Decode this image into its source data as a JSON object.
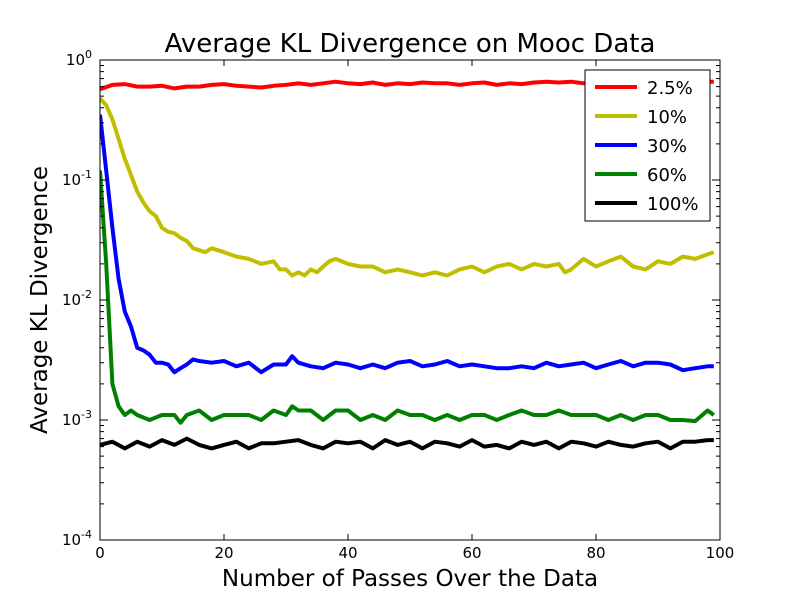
{
  "chart_data": {
    "type": "line",
    "title": "Average KL Divergence on Mooc Data",
    "xlabel": "Number of Passes Over the Data",
    "ylabel": "Average KL Divergence",
    "xlim": [
      0,
      100
    ],
    "ylim": [
      0.0001,
      1
    ],
    "yscale": "log",
    "grid": false,
    "legend_position": "top-right",
    "x_ticks": [
      {
        "value": 0,
        "label": "0"
      },
      {
        "value": 20,
        "label": "20"
      },
      {
        "value": 40,
        "label": "40"
      },
      {
        "value": 60,
        "label": "60"
      },
      {
        "value": 80,
        "label": "80"
      },
      {
        "value": 100,
        "label": "100"
      }
    ],
    "y_ticks": [
      {
        "value": 1,
        "base": "10",
        "exp": "0"
      },
      {
        "value": 0.1,
        "base": "10",
        "exp": "-1"
      },
      {
        "value": 0.01,
        "base": "10",
        "exp": "-2"
      },
      {
        "value": 0.001,
        "base": "10",
        "exp": "-3"
      },
      {
        "value": 0.0001,
        "base": "10",
        "exp": "-4"
      }
    ],
    "series": [
      {
        "name": "2.5%",
        "color": "#ff0000",
        "points": [
          [
            0,
            0.57
          ],
          [
            2,
            0.62
          ],
          [
            4,
            0.63
          ],
          [
            6,
            0.6
          ],
          [
            8,
            0.6
          ],
          [
            10,
            0.61
          ],
          [
            12,
            0.58
          ],
          [
            14,
            0.6
          ],
          [
            16,
            0.6
          ],
          [
            18,
            0.62
          ],
          [
            20,
            0.63
          ],
          [
            22,
            0.61
          ],
          [
            24,
            0.6
          ],
          [
            26,
            0.59
          ],
          [
            28,
            0.61
          ],
          [
            30,
            0.62
          ],
          [
            32,
            0.64
          ],
          [
            34,
            0.62
          ],
          [
            36,
            0.64
          ],
          [
            38,
            0.66
          ],
          [
            40,
            0.64
          ],
          [
            42,
            0.63
          ],
          [
            44,
            0.65
          ],
          [
            46,
            0.62
          ],
          [
            48,
            0.64
          ],
          [
            50,
            0.63
          ],
          [
            52,
            0.65
          ],
          [
            54,
            0.64
          ],
          [
            56,
            0.64
          ],
          [
            58,
            0.62
          ],
          [
            60,
            0.64
          ],
          [
            62,
            0.65
          ],
          [
            64,
            0.62
          ],
          [
            66,
            0.64
          ],
          [
            68,
            0.63
          ],
          [
            70,
            0.65
          ],
          [
            72,
            0.66
          ],
          [
            74,
            0.65
          ],
          [
            76,
            0.66
          ],
          [
            78,
            0.64
          ],
          [
            80,
            0.65
          ],
          [
            82,
            0.66
          ],
          [
            84,
            0.64
          ],
          [
            86,
            0.65
          ],
          [
            88,
            0.66
          ],
          [
            90,
            0.65
          ],
          [
            92,
            0.65
          ],
          [
            94,
            0.66
          ],
          [
            96,
            0.66
          ],
          [
            98,
            0.66
          ],
          [
            99,
            0.66
          ]
        ]
      },
      {
        "name": "10%",
        "color": "#bfbf00",
        "points": [
          [
            0,
            0.48
          ],
          [
            1,
            0.42
          ],
          [
            2,
            0.32
          ],
          [
            3,
            0.22
          ],
          [
            4,
            0.15
          ],
          [
            5,
            0.11
          ],
          [
            6,
            0.08
          ],
          [
            7,
            0.065
          ],
          [
            8,
            0.055
          ],
          [
            9,
            0.05
          ],
          [
            10,
            0.04
          ],
          [
            11,
            0.037
          ],
          [
            12,
            0.036
          ],
          [
            13,
            0.033
          ],
          [
            14,
            0.031
          ],
          [
            15,
            0.027
          ],
          [
            16,
            0.026
          ],
          [
            17,
            0.025
          ],
          [
            18,
            0.027
          ],
          [
            19,
            0.026
          ],
          [
            20,
            0.025
          ],
          [
            22,
            0.023
          ],
          [
            24,
            0.022
          ],
          [
            26,
            0.02
          ],
          [
            28,
            0.021
          ],
          [
            29,
            0.018
          ],
          [
            30,
            0.018
          ],
          [
            31,
            0.016
          ],
          [
            32,
            0.017
          ],
          [
            33,
            0.016
          ],
          [
            34,
            0.018
          ],
          [
            35,
            0.017
          ],
          [
            36,
            0.019
          ],
          [
            37,
            0.021
          ],
          [
            38,
            0.022
          ],
          [
            40,
            0.02
          ],
          [
            42,
            0.019
          ],
          [
            44,
            0.019
          ],
          [
            46,
            0.017
          ],
          [
            48,
            0.018
          ],
          [
            50,
            0.017
          ],
          [
            52,
            0.016
          ],
          [
            54,
            0.017
          ],
          [
            56,
            0.016
          ],
          [
            58,
            0.018
          ],
          [
            60,
            0.019
          ],
          [
            62,
            0.017
          ],
          [
            64,
            0.019
          ],
          [
            66,
            0.02
          ],
          [
            68,
            0.018
          ],
          [
            70,
            0.02
          ],
          [
            72,
            0.019
          ],
          [
            74,
            0.02
          ],
          [
            75,
            0.017
          ],
          [
            76,
            0.018
          ],
          [
            78,
            0.022
          ],
          [
            80,
            0.019
          ],
          [
            82,
            0.021
          ],
          [
            84,
            0.023
          ],
          [
            86,
            0.019
          ],
          [
            88,
            0.018
          ],
          [
            90,
            0.021
          ],
          [
            92,
            0.02
          ],
          [
            94,
            0.023
          ],
          [
            96,
            0.022
          ],
          [
            98,
            0.024
          ],
          [
            99,
            0.025
          ]
        ]
      },
      {
        "name": "30%",
        "color": "#0000ff",
        "points": [
          [
            0,
            0.35
          ],
          [
            1,
            0.12
          ],
          [
            2,
            0.04
          ],
          [
            3,
            0.015
          ],
          [
            4,
            0.008
          ],
          [
            5,
            0.006
          ],
          [
            6,
            0.004
          ],
          [
            7,
            0.0038
          ],
          [
            8,
            0.0035
          ],
          [
            9,
            0.003
          ],
          [
            10,
            0.003
          ],
          [
            11,
            0.0029
          ],
          [
            12,
            0.0025
          ],
          [
            13,
            0.0027
          ],
          [
            14,
            0.0029
          ],
          [
            15,
            0.0032
          ],
          [
            16,
            0.0031
          ],
          [
            18,
            0.003
          ],
          [
            20,
            0.0031
          ],
          [
            22,
            0.0028
          ],
          [
            24,
            0.003
          ],
          [
            26,
            0.0025
          ],
          [
            28,
            0.0029
          ],
          [
            30,
            0.0029
          ],
          [
            31,
            0.0034
          ],
          [
            32,
            0.003
          ],
          [
            34,
            0.0028
          ],
          [
            36,
            0.0027
          ],
          [
            38,
            0.003
          ],
          [
            40,
            0.0029
          ],
          [
            42,
            0.0027
          ],
          [
            44,
            0.0029
          ],
          [
            46,
            0.0027
          ],
          [
            48,
            0.003
          ],
          [
            50,
            0.0031
          ],
          [
            52,
            0.0028
          ],
          [
            54,
            0.0029
          ],
          [
            56,
            0.0031
          ],
          [
            58,
            0.0028
          ],
          [
            60,
            0.0029
          ],
          [
            62,
            0.0028
          ],
          [
            64,
            0.0027
          ],
          [
            66,
            0.0027
          ],
          [
            68,
            0.0028
          ],
          [
            70,
            0.0027
          ],
          [
            72,
            0.003
          ],
          [
            74,
            0.0028
          ],
          [
            76,
            0.0029
          ],
          [
            78,
            0.003
          ],
          [
            80,
            0.0027
          ],
          [
            82,
            0.0029
          ],
          [
            84,
            0.0031
          ],
          [
            86,
            0.0028
          ],
          [
            88,
            0.003
          ],
          [
            90,
            0.003
          ],
          [
            92,
            0.0029
          ],
          [
            94,
            0.0026
          ],
          [
            96,
            0.0027
          ],
          [
            98,
            0.0028
          ],
          [
            99,
            0.0028
          ]
        ]
      },
      {
        "name": "60%",
        "color": "#008000",
        "points": [
          [
            0,
            0.12
          ],
          [
            1,
            0.02
          ],
          [
            2,
            0.002
          ],
          [
            3,
            0.0013
          ],
          [
            4,
            0.0011
          ],
          [
            5,
            0.0012
          ],
          [
            6,
            0.0011
          ],
          [
            8,
            0.001
          ],
          [
            10,
            0.0011
          ],
          [
            12,
            0.0011
          ],
          [
            13,
            0.00095
          ],
          [
            14,
            0.0011
          ],
          [
            16,
            0.0012
          ],
          [
            18,
            0.001
          ],
          [
            20,
            0.0011
          ],
          [
            22,
            0.0011
          ],
          [
            24,
            0.0011
          ],
          [
            26,
            0.001
          ],
          [
            28,
            0.0012
          ],
          [
            30,
            0.0011
          ],
          [
            31,
            0.0013
          ],
          [
            32,
            0.0012
          ],
          [
            34,
            0.0012
          ],
          [
            36,
            0.001
          ],
          [
            38,
            0.0012
          ],
          [
            40,
            0.0012
          ],
          [
            42,
            0.001
          ],
          [
            44,
            0.0011
          ],
          [
            46,
            0.001
          ],
          [
            48,
            0.0012
          ],
          [
            50,
            0.0011
          ],
          [
            52,
            0.0011
          ],
          [
            54,
            0.001
          ],
          [
            56,
            0.0011
          ],
          [
            58,
            0.001
          ],
          [
            60,
            0.0011
          ],
          [
            62,
            0.0011
          ],
          [
            64,
            0.001
          ],
          [
            66,
            0.0011
          ],
          [
            68,
            0.0012
          ],
          [
            70,
            0.0011
          ],
          [
            72,
            0.0011
          ],
          [
            74,
            0.0012
          ],
          [
            76,
            0.0011
          ],
          [
            78,
            0.0011
          ],
          [
            80,
            0.0011
          ],
          [
            82,
            0.001
          ],
          [
            84,
            0.0011
          ],
          [
            86,
            0.001
          ],
          [
            88,
            0.0011
          ],
          [
            90,
            0.0011
          ],
          [
            92,
            0.001
          ],
          [
            94,
            0.001
          ],
          [
            96,
            0.00098
          ],
          [
            98,
            0.0012
          ],
          [
            99,
            0.0011
          ]
        ]
      },
      {
        "name": "100%",
        "color": "#000000",
        "points": [
          [
            0,
            0.00062
          ],
          [
            2,
            0.00066
          ],
          [
            4,
            0.00058
          ],
          [
            6,
            0.00066
          ],
          [
            8,
            0.0006
          ],
          [
            10,
            0.00068
          ],
          [
            12,
            0.00062
          ],
          [
            14,
            0.0007
          ],
          [
            16,
            0.00062
          ],
          [
            18,
            0.00058
          ],
          [
            20,
            0.00062
          ],
          [
            22,
            0.00066
          ],
          [
            24,
            0.00058
          ],
          [
            26,
            0.00064
          ],
          [
            28,
            0.00064
          ],
          [
            30,
            0.00066
          ],
          [
            32,
            0.00068
          ],
          [
            34,
            0.00062
          ],
          [
            36,
            0.00058
          ],
          [
            38,
            0.00066
          ],
          [
            40,
            0.00064
          ],
          [
            42,
            0.00066
          ],
          [
            44,
            0.00058
          ],
          [
            46,
            0.00068
          ],
          [
            48,
            0.00062
          ],
          [
            50,
            0.00066
          ],
          [
            52,
            0.00058
          ],
          [
            54,
            0.00066
          ],
          [
            56,
            0.00064
          ],
          [
            58,
            0.0006
          ],
          [
            60,
            0.00068
          ],
          [
            62,
            0.0006
          ],
          [
            64,
            0.00062
          ],
          [
            66,
            0.00058
          ],
          [
            68,
            0.00066
          ],
          [
            70,
            0.00062
          ],
          [
            72,
            0.00066
          ],
          [
            74,
            0.00058
          ],
          [
            76,
            0.00066
          ],
          [
            78,
            0.00064
          ],
          [
            80,
            0.0006
          ],
          [
            82,
            0.00066
          ],
          [
            84,
            0.00062
          ],
          [
            86,
            0.0006
          ],
          [
            88,
            0.00064
          ],
          [
            90,
            0.00066
          ],
          [
            92,
            0.00058
          ],
          [
            94,
            0.00066
          ],
          [
            96,
            0.00066
          ],
          [
            98,
            0.00068
          ],
          [
            99,
            0.00068
          ]
        ]
      }
    ]
  }
}
